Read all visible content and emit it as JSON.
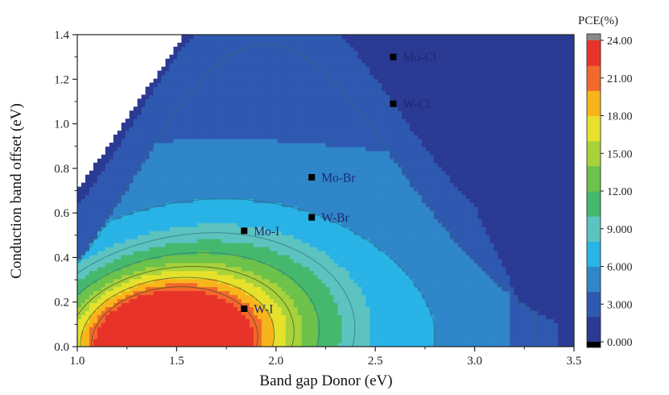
{
  "chart_data": {
    "type": "heatmap",
    "xlabel": "Band gap Donor (eV)",
    "ylabel": "Conduction band offset (eV)",
    "xlim": [
      1.0,
      3.5
    ],
    "ylim": [
      0.0,
      1.4
    ],
    "x_ticks": [
      "1.0",
      "1.5",
      "2.0",
      "2.5",
      "3.0",
      "3.5"
    ],
    "y_ticks": [
      "0.0",
      "0.2",
      "0.4",
      "0.6",
      "0.8",
      "1.0",
      "1.2",
      "1.4"
    ],
    "colorbar": {
      "title": "PCE(%)",
      "range": [
        0,
        24
      ],
      "tick_labels": [
        "24.00",
        "21.00",
        "18.00",
        "15.00",
        "12.00",
        "9.000",
        "6.000",
        "3.000",
        "0.000"
      ],
      "colors": [
        "#2b3a93",
        "#2f59b0",
        "#2f86c9",
        "#29b3e6",
        "#5dc3c1",
        "#45b86d",
        "#6cc24a",
        "#a8d23a",
        "#e6e22c",
        "#f7b51b",
        "#f2692b",
        "#e8332a"
      ]
    },
    "contour_levels": [
      3,
      6,
      9,
      12,
      15,
      18,
      21
    ],
    "points": [
      {
        "label": "Mo-Cl",
        "x": 2.59,
        "y": 1.3
      },
      {
        "label": "W-Cl",
        "x": 2.59,
        "y": 1.09
      },
      {
        "label": "Mo-Br",
        "x": 2.18,
        "y": 0.76
      },
      {
        "label": "W-Br",
        "x": 2.18,
        "y": 0.58
      },
      {
        "label": "Mo-I",
        "x": 1.84,
        "y": 0.52
      },
      {
        "label": "W-I",
        "x": 1.84,
        "y": 0.17
      }
    ],
    "grid": false,
    "legend": "colorbar-right"
  }
}
